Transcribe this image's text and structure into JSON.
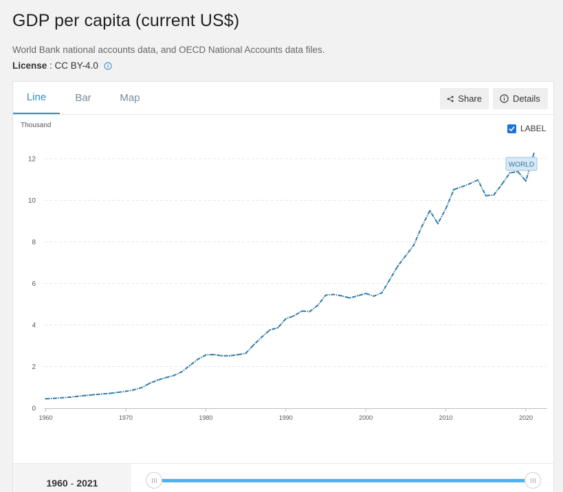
{
  "page": {
    "title": "GDP per capita (current US$)",
    "source": "World Bank national accounts data, and OECD National Accounts data files.",
    "license_label": "License",
    "license_sep": " : ",
    "license_value": "CC BY-4.0"
  },
  "tabs": [
    {
      "label": "Line",
      "active": true
    },
    {
      "label": "Bar",
      "active": false
    },
    {
      "label": "Map",
      "active": false
    }
  ],
  "toolbar": {
    "share_label": "Share",
    "details_label": "Details"
  },
  "label_toggle": {
    "label": "LABEL",
    "checked": true
  },
  "range": {
    "start": "1960",
    "separator": "-",
    "end": "2021"
  },
  "colors": {
    "line": "#2f79a8",
    "accent": "#2e8bc8",
    "slider": "#4fb2ec"
  },
  "chart_data": {
    "type": "line",
    "ylabel": "Thousand",
    "ylim": [
      0,
      12.5
    ],
    "yticks": [
      0,
      2,
      4,
      6,
      8,
      10,
      12
    ],
    "xlim": [
      1960,
      2022
    ],
    "xticks": [
      1960,
      1970,
      1980,
      1990,
      2000,
      2010,
      2020
    ],
    "grid": true,
    "series": [
      {
        "name": "WORLD",
        "x": [
          1960,
          1961,
          1962,
          1963,
          1964,
          1965,
          1966,
          1967,
          1968,
          1969,
          1970,
          1971,
          1972,
          1973,
          1974,
          1975,
          1976,
          1977,
          1978,
          1979,
          1980,
          1981,
          1982,
          1983,
          1984,
          1985,
          1986,
          1987,
          1988,
          1989,
          1990,
          1991,
          1992,
          1993,
          1994,
          1995,
          1996,
          1997,
          1998,
          1999,
          2000,
          2001,
          2002,
          2003,
          2004,
          2005,
          2006,
          2007,
          2008,
          2009,
          2010,
          2011,
          2012,
          2013,
          2014,
          2015,
          2016,
          2017,
          2018,
          2019,
          2020,
          2021
        ],
        "y": [
          0.45,
          0.47,
          0.5,
          0.53,
          0.57,
          0.61,
          0.65,
          0.68,
          0.71,
          0.76,
          0.81,
          0.88,
          0.99,
          1.2,
          1.35,
          1.47,
          1.57,
          1.75,
          2.05,
          2.35,
          2.56,
          2.58,
          2.52,
          2.52,
          2.57,
          2.64,
          3.05,
          3.42,
          3.76,
          3.87,
          4.3,
          4.44,
          4.67,
          4.65,
          4.95,
          5.44,
          5.47,
          5.4,
          5.3,
          5.41,
          5.52,
          5.39,
          5.55,
          6.19,
          6.84,
          7.34,
          7.85,
          8.74,
          9.5,
          8.88,
          9.6,
          10.52,
          10.65,
          10.8,
          10.98,
          10.22,
          10.26,
          10.77,
          11.32,
          11.38,
          10.93,
          12.26
        ]
      }
    ],
    "series_label": "WORLD"
  }
}
